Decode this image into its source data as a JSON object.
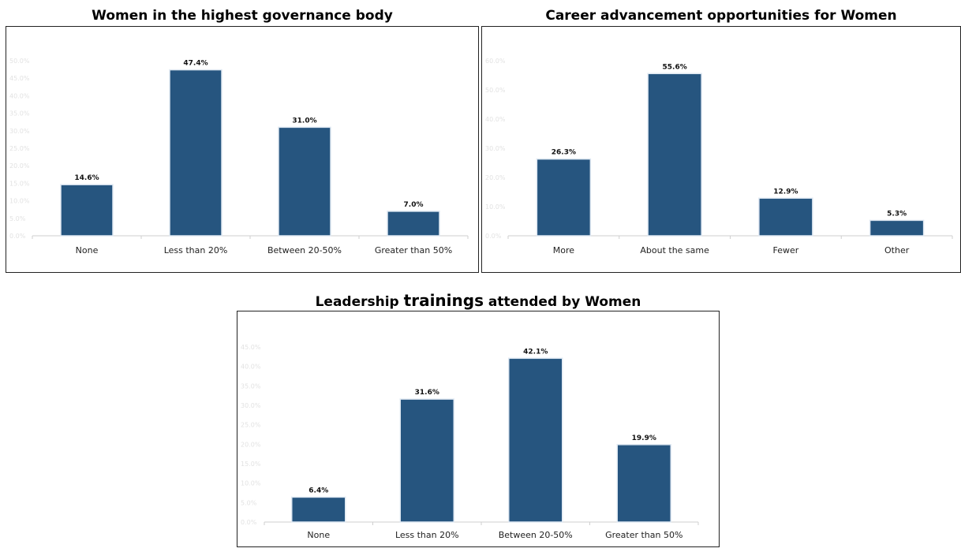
{
  "colors": {
    "bar": "#26557f",
    "bar_edge": "#dfe8f2",
    "axis": "#cfcfcf"
  },
  "chart_data": [
    {
      "type": "bar",
      "title": "Women in the highest governance body",
      "categories": [
        "None",
        "Less than 20%",
        "Between 20-50%",
        "Greater than 50%"
      ],
      "values": [
        14.6,
        47.4,
        31.0,
        7.0
      ],
      "data_labels": [
        "14.6%",
        "47.4%",
        "31.0%",
        "7.0%"
      ],
      "ylim": [
        0,
        50
      ],
      "yticks": [
        "0.0%",
        "5.0%",
        "10.0%",
        "15.0%",
        "20.0%",
        "25.0%",
        "30.0%",
        "35.0%",
        "40.0%",
        "45.0%",
        "50.0%"
      ],
      "xlabel": "",
      "ylabel": "",
      "grid": false
    },
    {
      "type": "bar",
      "title": "Career advancement opportunities for Women",
      "categories": [
        "More",
        "About the same",
        "Fewer",
        "Other"
      ],
      "values": [
        26.3,
        55.6,
        12.9,
        5.3
      ],
      "data_labels": [
        "26.3%",
        "55.6%",
        "12.9%",
        "5.3%"
      ],
      "ylim": [
        0,
        60
      ],
      "yticks": [
        "0.0%",
        "10.0%",
        "20.0%",
        "30.0%",
        "40.0%",
        "50.0%",
        "60.0%"
      ],
      "xlabel": "",
      "ylabel": "",
      "grid": false
    },
    {
      "type": "bar",
      "title": "Leadership trainings attended by Women",
      "title_parts": [
        "Leadership ",
        "trainings",
        " attended by Women"
      ],
      "categories": [
        "None",
        "Less than 20%",
        "Between 20-50%",
        "Greater than 50%"
      ],
      "values": [
        6.4,
        31.6,
        42.1,
        19.9
      ],
      "data_labels": [
        "6.4%",
        "31.6%",
        "42.1%",
        "19.9%"
      ],
      "ylim": [
        0,
        45
      ],
      "yticks": [
        "0.0%",
        "5.0%",
        "10.0%",
        "15.0%",
        "20.0%",
        "25.0%",
        "30.0%",
        "35.0%",
        "40.0%",
        "45.0%"
      ],
      "xlabel": "",
      "ylabel": "",
      "grid": false
    }
  ]
}
